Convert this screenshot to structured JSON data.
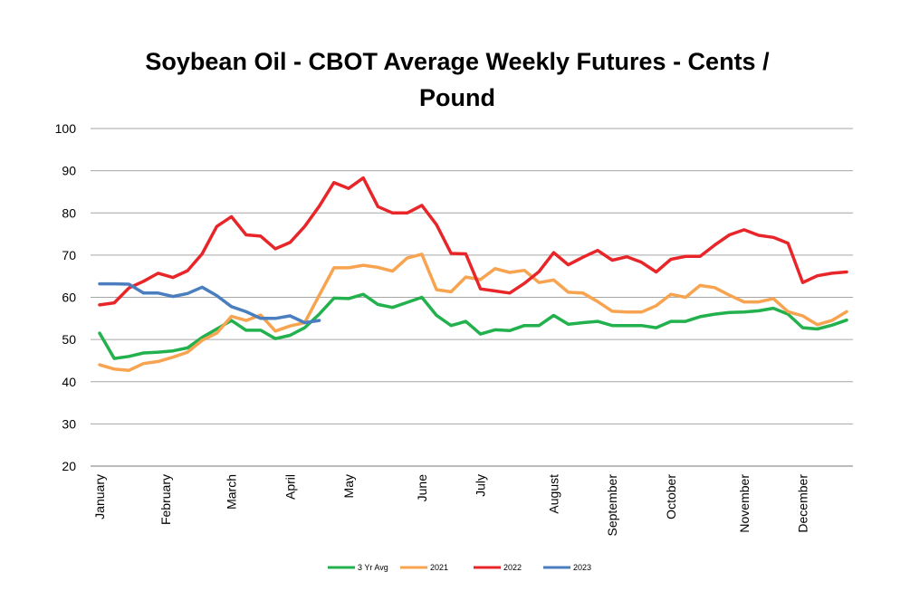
{
  "chart_data": {
    "type": "line",
    "title_line1": "Soybean Oil - CBOT Average Weekly Futures - Cents /",
    "title_line2": "Pound",
    "xlabel": "",
    "ylabel": "",
    "ylim": [
      20,
      100
    ],
    "yticks": [
      20,
      30,
      40,
      50,
      60,
      70,
      80,
      90,
      100
    ],
    "grid": true,
    "legend_position": "bottom",
    "x_week_range": [
      1,
      52
    ],
    "month_labels": [
      {
        "label": "January",
        "week": 1
      },
      {
        "label": "February",
        "week": 5.5
      },
      {
        "label": "March",
        "week": 10
      },
      {
        "label": "April",
        "week": 14
      },
      {
        "label": "May",
        "week": 18
      },
      {
        "label": "June",
        "week": 23
      },
      {
        "label": "July",
        "week": 27
      },
      {
        "label": "August",
        "week": 32
      },
      {
        "label": "September",
        "week": 36
      },
      {
        "label": "October",
        "week": 40
      },
      {
        "label": "November",
        "week": 45
      },
      {
        "label": "December",
        "week": 49
      }
    ],
    "series": [
      {
        "name": "3 Yr Avg",
        "color": "#22b14c",
        "values": [
          51.5,
          45.5,
          46,
          46.8,
          47,
          47.3,
          48,
          50.5,
          52.5,
          54.5,
          52.2,
          52.2,
          50.2,
          51,
          52.8,
          56,
          59.8,
          59.7,
          60.7,
          58.3,
          57.6,
          58.8,
          60,
          55.7,
          53.3,
          54.3,
          51.3,
          52.3,
          52.1,
          53.3,
          53.3,
          55.7,
          53.6,
          54,
          54.3,
          53.3,
          53.3,
          53.3,
          52.8,
          54.3,
          54.3,
          55.4,
          56,
          56.4,
          56.5,
          56.8,
          57.4,
          56,
          52.8,
          52.5,
          53.4,
          54.6
        ]
      },
      {
        "name": "2021",
        "color": "#f7a350",
        "values": [
          44,
          43,
          42.7,
          44.3,
          44.8,
          45.8,
          47,
          49.8,
          51.5,
          55.5,
          54.5,
          55.8,
          52,
          53.2,
          54,
          60.5,
          67,
          67,
          67.6,
          67.1,
          66.2,
          69.3,
          70.2,
          61.8,
          61.3,
          64.8,
          64.2,
          66.8,
          65.9,
          66.4,
          63.5,
          64.1,
          61.2,
          61,
          59,
          56.7,
          56.5,
          56.5,
          58,
          60.7,
          60,
          62.8,
          62.3,
          60.5,
          58.9,
          58.9,
          59.7,
          56.6,
          55.6,
          53.5,
          54.5,
          56.6
        ]
      },
      {
        "name": "2022",
        "color": "#e8262a",
        "values": [
          58.2,
          58.7,
          62.2,
          63.8,
          65.7,
          64.7,
          66.3,
          70.3,
          76.8,
          79.1,
          74.8,
          74.5,
          71.5,
          73,
          76.8,
          81.6,
          87.2,
          85.8,
          88.3,
          81.5,
          80,
          80,
          81.8,
          77.2,
          70.4,
          70.3,
          62,
          61.5,
          61,
          63.3,
          66.1,
          70.6,
          67.7,
          69.5,
          71.1,
          68.8,
          69.6,
          68.3,
          66,
          69,
          69.7,
          69.7,
          72.4,
          74.8,
          76,
          74.7,
          74.2,
          72.8,
          63.5,
          65.1,
          65.7,
          66
        ]
      },
      {
        "name": "2023",
        "color": "#4a7ebf",
        "values": [
          63.2,
          63.2,
          63.1,
          61,
          61,
          60.2,
          60.9,
          62.4,
          60.4,
          57.8,
          56.6,
          55,
          55,
          55.6,
          54,
          54.5
        ]
      }
    ]
  }
}
